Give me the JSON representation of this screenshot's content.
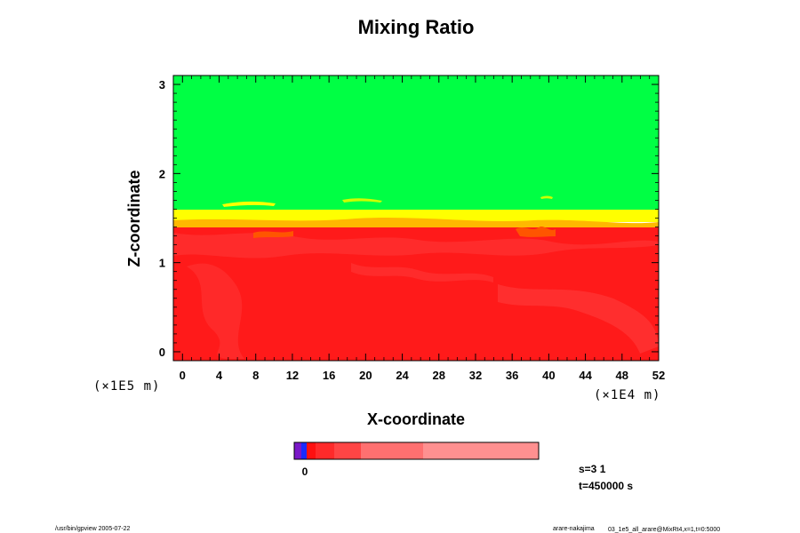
{
  "chart_data": {
    "type": "heatmap",
    "title": "Mixing Ratio",
    "xlabel": "X-coordinate",
    "ylabel": "Z-coordinate",
    "xlim": [
      -1,
      52
    ],
    "ylim": [
      -0.1,
      3.1
    ],
    "x_ticks": [
      "0",
      "4",
      "8",
      "12",
      "16",
      "20",
      "24",
      "28",
      "32",
      "36",
      "40",
      "44",
      "48",
      "52"
    ],
    "y_ticks": [
      "0",
      "1",
      "2",
      "3"
    ],
    "x_scale": "(×1E4 m)",
    "y_scale": "(×1E5 m)",
    "layers": [
      {
        "name": "upper",
        "from_z": 1.55,
        "to_z": 3.1,
        "color": "#00ff44"
      },
      {
        "name": "transition",
        "from_z": 1.45,
        "to_z": 1.55,
        "color": "#ffff00"
      },
      {
        "name": "lower",
        "from_z": -0.1,
        "to_z": 1.45,
        "color": "#ff1a1a"
      }
    ],
    "colorbar": {
      "tick_label": "0",
      "colors": [
        "#7a18c8",
        "#1a2bff",
        "#ff1010",
        "#ff2a2a",
        "#ff4545",
        "#ff7070",
        "#ff9090"
      ]
    },
    "info": {
      "s": "s=3 1",
      "t": "t=450000 s"
    },
    "footer": {
      "left": "/usr/bin/gpview 2005-07-22",
      "right_main": "arare-nakajima",
      "right_small": "03_1e5_all_arare@MixRt4,x=1,t=0:5000"
    }
  }
}
